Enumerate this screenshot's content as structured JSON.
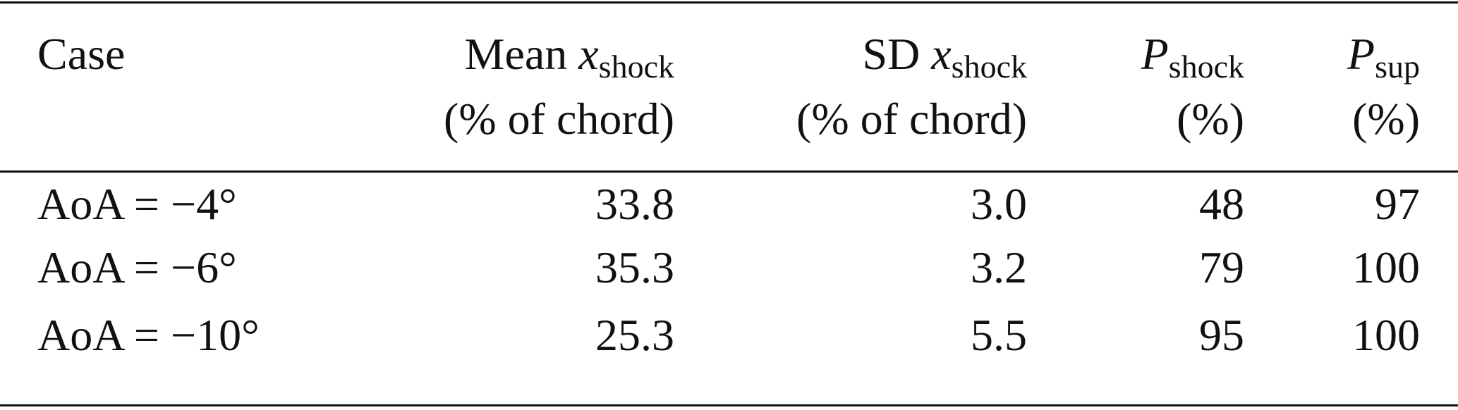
{
  "header": {
    "case": "Case",
    "columns": [
      {
        "prefix": "Mean ",
        "symbol": "x",
        "subscript": "shock",
        "unit": "(% of chord)"
      },
      {
        "prefix": "SD ",
        "symbol": "x",
        "subscript": "shock",
        "unit": "(% of chord)"
      },
      {
        "symbol": "P",
        "subscript": "shock",
        "unit": "(%)"
      },
      {
        "symbol": "P",
        "subscript": "sup",
        "unit": "(%)"
      }
    ]
  },
  "rows": [
    {
      "case": "AoA = −4°",
      "values": [
        "33.8",
        "3.0",
        "48",
        "97"
      ]
    },
    {
      "case": "AoA = −6°",
      "values": [
        "35.3",
        "3.2",
        "79",
        "100"
      ]
    },
    {
      "case": "AoA = −10°",
      "values": [
        "25.3",
        "5.5",
        "95",
        "100"
      ]
    }
  ]
}
